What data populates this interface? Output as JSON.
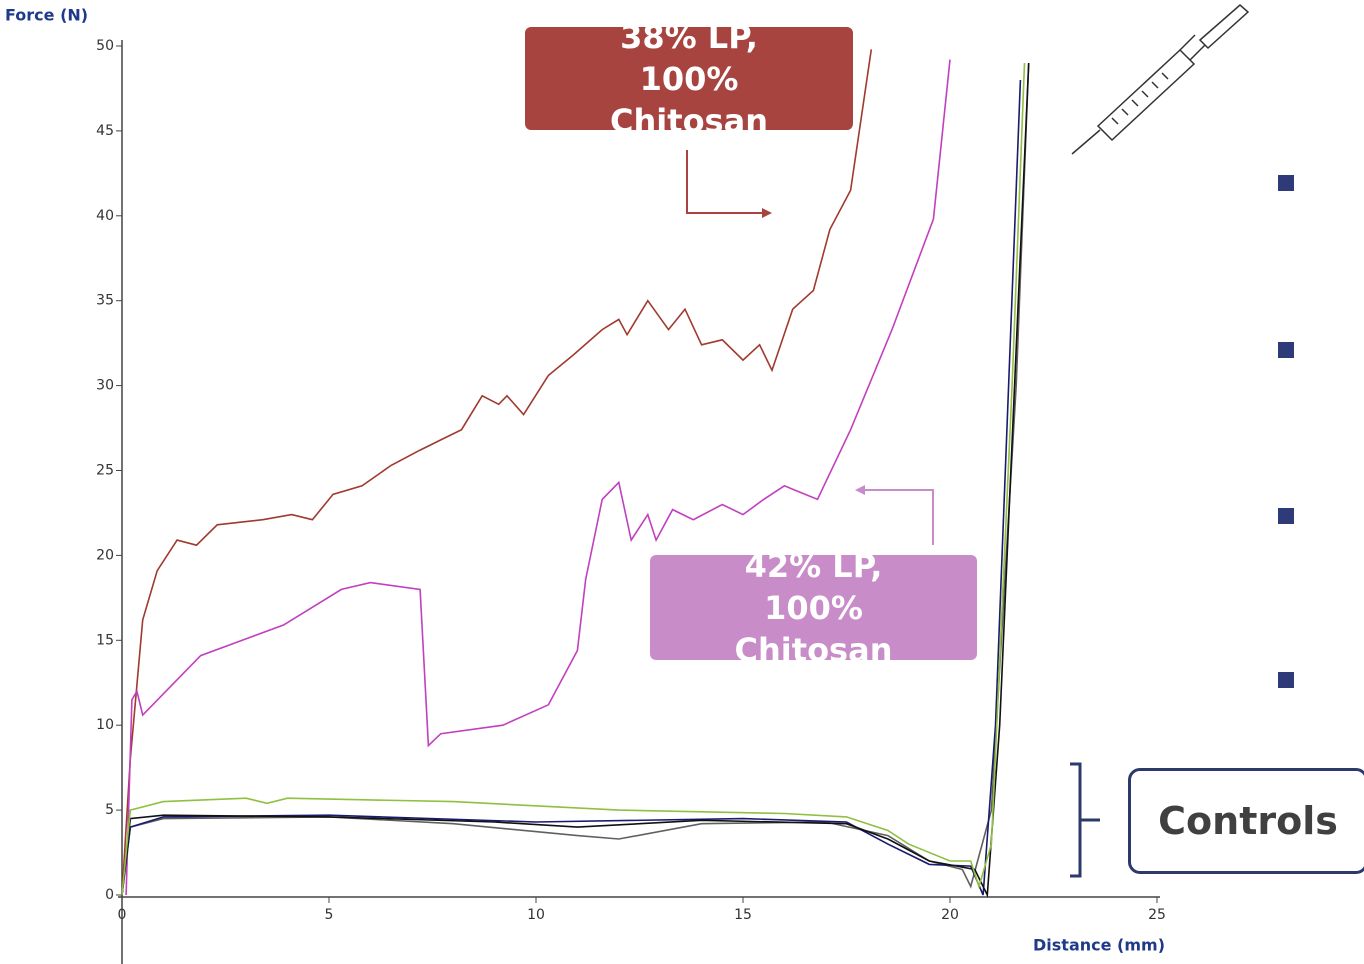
{
  "chart_data": {
    "type": "line",
    "ylabel": "Force (N)",
    "xlabel": "Distance (mm)",
    "xlim": [
      0,
      25
    ],
    "ylim": [
      0,
      50
    ],
    "xticks": [
      0,
      5,
      10,
      15,
      20,
      25
    ],
    "yticks": [
      0,
      5,
      10,
      15,
      20,
      25,
      30,
      35,
      40,
      45,
      50
    ],
    "annotations": [
      "38% LP, 100% Chitosan",
      "42% LP, 100% Chitosan",
      "Controls"
    ],
    "series": [
      {
        "color": "#a0392e",
        "x": [
          0,
          0.2,
          0.5,
          0.85,
          1.33,
          1.8,
          2.3,
          3.4,
          4.1,
          4.6,
          5.1,
          5.8,
          6.5,
          7.2,
          7.7,
          8.2,
          8.7,
          9.1,
          9.3,
          9.7,
          10.3,
          10.9,
          11.6,
          12,
          12.2,
          12.7,
          13.2,
          13.6,
          14,
          14.5,
          15,
          15.4,
          15.7,
          16.2,
          16.7,
          17.1,
          17.6,
          18.1
        ],
        "values": [
          0,
          8,
          16.2,
          19.1,
          20.9,
          20.6,
          21.8,
          22.1,
          22.4,
          22.1,
          23.6,
          24.1,
          25.3,
          26.2,
          26.8,
          27.4,
          29.4,
          28.9,
          29.4,
          28.3,
          30.6,
          31.8,
          33.3,
          33.9,
          33,
          35,
          33.3,
          34.5,
          32.4,
          32.7,
          31.5,
          32.4,
          30.9,
          34.5,
          35.6,
          39.2,
          41.5,
          49.8
        ]
      },
      {
        "color": "#c040c0",
        "x": [
          0.1,
          0.24,
          0.36,
          0.5,
          1.9,
          3.9,
          5.3,
          6,
          7.2,
          7.4,
          7.7,
          9.2,
          10.3,
          11,
          11.2,
          11.6,
          12,
          12.3,
          12.7,
          12.9,
          13.3,
          13.8,
          14.5,
          15,
          15.5,
          16,
          16.2,
          16.8,
          17.6,
          18.6,
          19.6,
          20
        ],
        "values": [
          0,
          11.5,
          12,
          10.6,
          14.1,
          15.9,
          18,
          18.4,
          18,
          8.8,
          9.5,
          10,
          11.2,
          14.4,
          18.6,
          23.3,
          24.3,
          20.9,
          22.4,
          20.9,
          22.7,
          22.1,
          23,
          22.4,
          23.3,
          24.1,
          23.9,
          23.3,
          27.4,
          33.3,
          39.8,
          49.2
        ]
      },
      {
        "color": "#606060",
        "x": [
          0,
          0.2,
          1,
          5,
          8,
          11,
          12,
          14,
          17,
          18.5,
          19.5,
          20.3,
          20.5,
          21,
          21.6,
          21.9
        ],
        "values": [
          0,
          4,
          4.5,
          4.6,
          4.2,
          3.5,
          3.3,
          4.2,
          4.3,
          3.5,
          2,
          1.5,
          0.5,
          5,
          30,
          49
        ]
      },
      {
        "color": "#1a1a6e",
        "x": [
          0,
          0.2,
          1,
          5,
          10,
          15,
          17.5,
          18.5,
          19.5,
          20.5,
          20.8,
          21.1,
          21.7
        ],
        "values": [
          0,
          4,
          4.6,
          4.7,
          4.3,
          4.5,
          4.3,
          3,
          1.8,
          1.7,
          0,
          10,
          48
        ]
      },
      {
        "color": "#111111",
        "x": [
          0,
          0.2,
          1,
          5,
          9,
          11,
          14,
          17.5,
          18.5,
          19.5,
          20.6,
          20.9,
          21.2,
          21.9
        ],
        "values": [
          0,
          4.5,
          4.7,
          4.6,
          4.3,
          4,
          4.4,
          4.2,
          3.3,
          2,
          1.5,
          0,
          10,
          49
        ]
      },
      {
        "color": "#90c040",
        "x": [
          0,
          0.2,
          1,
          3,
          3.5,
          4,
          8,
          12,
          16,
          17.5,
          18.5,
          19,
          20,
          20.5,
          20.7,
          21,
          21.5,
          21.8
        ],
        "values": [
          0,
          5,
          5.5,
          5.7,
          5.4,
          5.7,
          5.5,
          5,
          4.8,
          4.6,
          3.8,
          3,
          2,
          2,
          0.5,
          3,
          30,
          49
        ]
      }
    ]
  }
}
